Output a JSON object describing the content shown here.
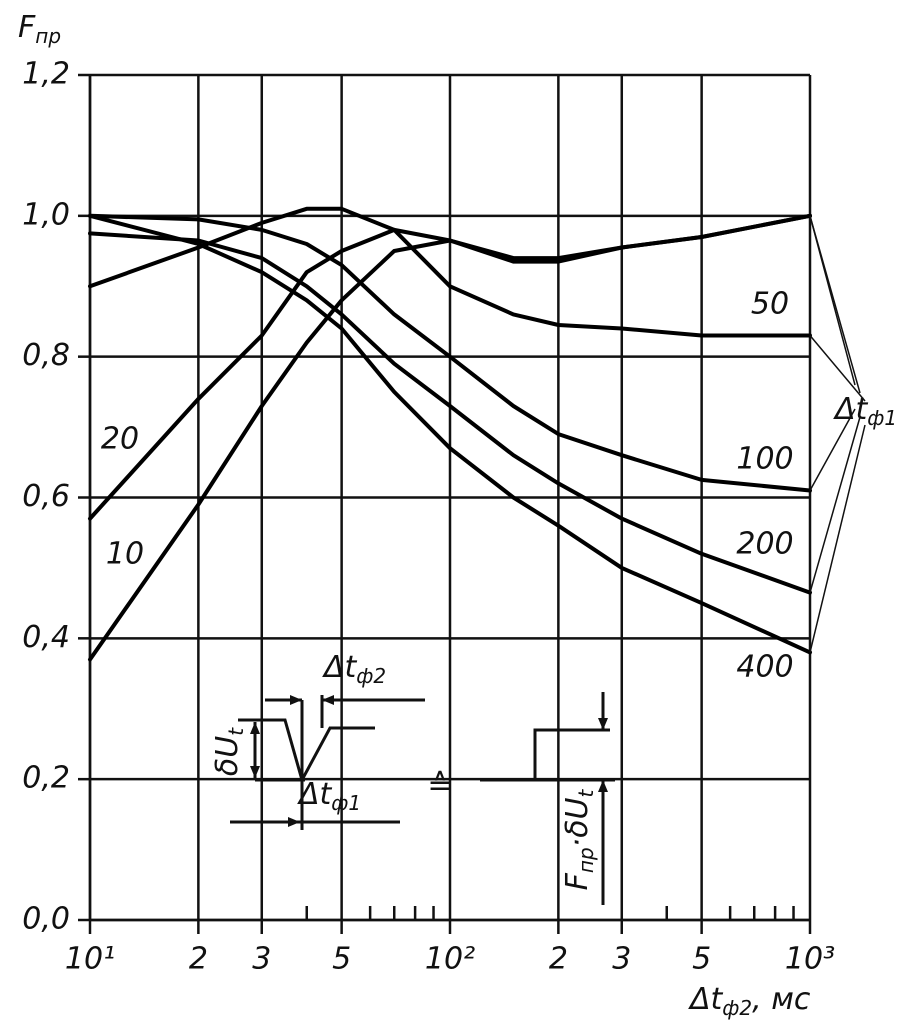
{
  "chart_data": {
    "type": "line",
    "y_label": {
      "text": "F",
      "sub": "пр"
    },
    "x_label": {
      "text": "Δt",
      "sub": "ф2",
      "unit": ", мс"
    },
    "x_log": true,
    "xlim": [
      10,
      1000
    ],
    "ylim": [
      0,
      1.2
    ],
    "xticks": [
      {
        "value": 10,
        "label": "10¹"
      },
      {
        "value": 20,
        "label": "2"
      },
      {
        "value": 30,
        "label": "3"
      },
      {
        "value": 50,
        "label": "5"
      },
      {
        "value": 100,
        "label": "10²"
      },
      {
        "value": 200,
        "label": "2"
      },
      {
        "value": 300,
        "label": "3"
      },
      {
        "value": 500,
        "label": "5"
      },
      {
        "value": 1000,
        "label": "10³"
      }
    ],
    "xminor": [
      40,
      60,
      70,
      80,
      90,
      400,
      600,
      700,
      800,
      900
    ],
    "yticks": [
      {
        "value": 0,
        "label": "0,0"
      },
      {
        "value": 0.2,
        "label": "0,2"
      },
      {
        "value": 0.4,
        "label": "0,4"
      },
      {
        "value": 0.6,
        "label": "0,6"
      },
      {
        "value": 0.8,
        "label": "0,8"
      },
      {
        "value": 1.0,
        "label": "1,0"
      },
      {
        "value": 1.2,
        "label": "1,2"
      }
    ],
    "grid": true,
    "x": [
      10,
      20,
      30,
      40,
      50,
      70,
      100,
      150,
      200,
      300,
      500,
      1000
    ],
    "series": [
      {
        "name": "10",
        "color": "#000000",
        "values": [
          0.37,
          0.59,
          0.73,
          0.82,
          0.88,
          0.95,
          0.965,
          0.94,
          0.94,
          0.955,
          0.97,
          1.0
        ]
      },
      {
        "name": "20",
        "color": "#000000",
        "values": [
          0.57,
          0.74,
          0.83,
          0.92,
          0.95,
          0.98,
          0.965,
          0.935,
          0.935,
          0.955,
          0.97,
          1.0
        ]
      },
      {
        "name": "50",
        "color": "#000000",
        "values": [
          0.9,
          0.955,
          0.99,
          1.01,
          1.01,
          0.98,
          0.9,
          0.86,
          0.845,
          0.84,
          0.83,
          0.83
        ]
      },
      {
        "name": "100",
        "color": "#000000",
        "values": [
          1.0,
          0.995,
          0.98,
          0.96,
          0.93,
          0.86,
          0.8,
          0.73,
          0.69,
          0.66,
          0.625,
          0.61
        ]
      },
      {
        "name": "200",
        "color": "#000000",
        "values": [
          0.975,
          0.965,
          0.94,
          0.9,
          0.86,
          0.79,
          0.73,
          0.66,
          0.62,
          0.57,
          0.52,
          0.465
        ]
      },
      {
        "name": "400",
        "color": "#000000",
        "values": [
          1.0,
          0.96,
          0.92,
          0.88,
          0.84,
          0.75,
          0.67,
          0.6,
          0.56,
          0.5,
          0.45,
          0.38
        ]
      }
    ],
    "series_label": {
      "text": "Δt",
      "sub": "ф1"
    },
    "inset_labels": [
      {
        "text": "Δt",
        "sub": "ф2"
      },
      {
        "text": "δU",
        "sub": "t"
      },
      {
        "text": "Δt",
        "sub": "ф1"
      },
      {
        "text": "≙",
        "sub": ""
      },
      {
        "text": "F",
        "sub": "пр",
        "tail": "·δU",
        "tail_sub": "t"
      }
    ]
  }
}
